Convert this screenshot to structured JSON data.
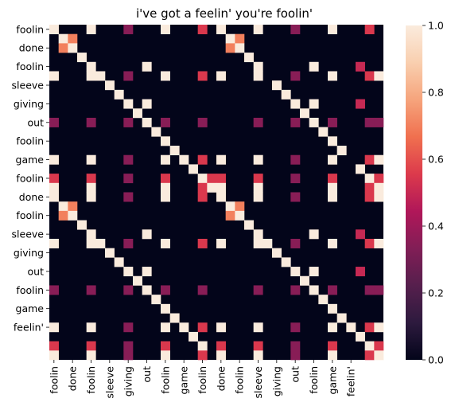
{
  "chart_data": {
    "type": "heatmap",
    "title": "i've got a feelin' you're foolin'",
    "size": 36,
    "row_tick_labels": [
      "foolin",
      "done",
      "foolin",
      "sleeve",
      "giving",
      "out",
      "foolin",
      "game",
      "foolin",
      "done",
      "foolin",
      "sleeve",
      "giving",
      "out",
      "foolin",
      "game",
      "feelin'"
    ],
    "col_tick_labels": [
      "foolin",
      "done",
      "foolin",
      "sleeve",
      "giving",
      "out",
      "foolin",
      "game",
      "foolin",
      "done",
      "foolin",
      "sleeve",
      "giving",
      "out",
      "foolin",
      "game",
      "feelin'"
    ],
    "tick_every": 2,
    "colorbar": {
      "min": 0.0,
      "max": 1.0,
      "ticks": [
        "0.0",
        "0.2",
        "0.4",
        "0.6",
        "0.8",
        "1.0"
      ]
    },
    "colormap": [
      "#03051a",
      "#2d1a3e",
      "#561f4d",
      "#811e56",
      "#b01759",
      "#dc3a4c",
      "#f0704f",
      "#f6a47c",
      "#f9cfaf",
      "#faebdd"
    ],
    "base_value": 0.0,
    "cells": [
      {
        "r": 0,
        "c": 0,
        "v": 1.0
      },
      {
        "r": 0,
        "c": 4,
        "v": 1.0
      },
      {
        "r": 0,
        "c": 8,
        "v": 0.35
      },
      {
        "r": 0,
        "c": 12,
        "v": 1.0
      },
      {
        "r": 0,
        "c": 16,
        "v": 0.55
      },
      {
        "r": 0,
        "c": 18,
        "v": 1.0
      },
      {
        "r": 0,
        "c": 22,
        "v": 1.0
      },
      {
        "r": 0,
        "c": 26,
        "v": 0.35
      },
      {
        "r": 0,
        "c": 30,
        "v": 1.0
      },
      {
        "r": 0,
        "c": 34,
        "v": 0.55
      },
      {
        "r": 1,
        "c": 1,
        "v": 1.0
      },
      {
        "r": 1,
        "c": 2,
        "v": 0.7
      },
      {
        "r": 1,
        "c": 19,
        "v": 1.0
      },
      {
        "r": 1,
        "c": 20,
        "v": 0.7
      },
      {
        "r": 2,
        "c": 1,
        "v": 0.7
      },
      {
        "r": 2,
        "c": 2,
        "v": 1.0
      },
      {
        "r": 2,
        "c": 19,
        "v": 0.7
      },
      {
        "r": 2,
        "c": 20,
        "v": 1.0
      },
      {
        "r": 3,
        "c": 3,
        "v": 1.0
      },
      {
        "r": 3,
        "c": 21,
        "v": 1.0
      },
      {
        "r": 4,
        "c": 4,
        "v": 1.0
      },
      {
        "r": 4,
        "c": 10,
        "v": 1.0
      },
      {
        "r": 4,
        "c": 22,
        "v": 1.0
      },
      {
        "r": 4,
        "c": 28,
        "v": 1.0
      },
      {
        "r": 4,
        "c": 33,
        "v": 0.5
      },
      {
        "r": 5,
        "c": 0,
        "v": 1.0
      },
      {
        "r": 5,
        "c": 4,
        "v": 1.0
      },
      {
        "r": 5,
        "c": 5,
        "v": 1.0
      },
      {
        "r": 5,
        "c": 8,
        "v": 0.35
      },
      {
        "r": 5,
        "c": 12,
        "v": 1.0
      },
      {
        "r": 5,
        "c": 16,
        "v": 0.55
      },
      {
        "r": 5,
        "c": 18,
        "v": 1.0
      },
      {
        "r": 5,
        "c": 22,
        "v": 1.0
      },
      {
        "r": 5,
        "c": 26,
        "v": 0.35
      },
      {
        "r": 5,
        "c": 30,
        "v": 1.0
      },
      {
        "r": 5,
        "c": 34,
        "v": 0.55
      },
      {
        "r": 5,
        "c": 35,
        "v": 1.0
      },
      {
        "r": 6,
        "c": 6,
        "v": 1.0
      },
      {
        "r": 6,
        "c": 24,
        "v": 1.0
      },
      {
        "r": 7,
        "c": 7,
        "v": 1.0
      },
      {
        "r": 7,
        "c": 25,
        "v": 1.0
      },
      {
        "r": 8,
        "c": 8,
        "v": 1.0
      },
      {
        "r": 8,
        "c": 10,
        "v": 1.0
      },
      {
        "r": 8,
        "c": 26,
        "v": 1.0
      },
      {
        "r": 8,
        "c": 28,
        "v": 1.0
      },
      {
        "r": 8,
        "c": 33,
        "v": 0.5
      },
      {
        "r": 9,
        "c": 9,
        "v": 1.0
      },
      {
        "r": 9,
        "c": 27,
        "v": 1.0
      },
      {
        "r": 10,
        "c": 0,
        "v": 0.35
      },
      {
        "r": 10,
        "c": 4,
        "v": 0.35
      },
      {
        "r": 10,
        "c": 8,
        "v": 0.35
      },
      {
        "r": 10,
        "c": 10,
        "v": 1.0
      },
      {
        "r": 10,
        "c": 12,
        "v": 0.35
      },
      {
        "r": 10,
        "c": 16,
        "v": 0.35
      },
      {
        "r": 10,
        "c": 22,
        "v": 0.35
      },
      {
        "r": 10,
        "c": 26,
        "v": 0.35
      },
      {
        "r": 10,
        "c": 28,
        "v": 1.0
      },
      {
        "r": 10,
        "c": 30,
        "v": 0.35
      },
      {
        "r": 10,
        "c": 34,
        "v": 0.35
      },
      {
        "r": 10,
        "c": 35,
        "v": 0.35
      },
      {
        "r": 11,
        "c": 11,
        "v": 1.0
      },
      {
        "r": 11,
        "c": 29,
        "v": 1.0
      },
      {
        "r": 12,
        "c": 12,
        "v": 1.0
      },
      {
        "r": 12,
        "c": 30,
        "v": 1.0
      },
      {
        "r": 13,
        "c": 13,
        "v": 1.0
      },
      {
        "r": 13,
        "c": 31,
        "v": 1.0
      },
      {
        "r": 14,
        "c": 0,
        "v": 1.0
      },
      {
        "r": 14,
        "c": 4,
        "v": 1.0
      },
      {
        "r": 14,
        "c": 8,
        "v": 0.35
      },
      {
        "r": 14,
        "c": 12,
        "v": 1.0
      },
      {
        "r": 14,
        "c": 14,
        "v": 1.0
      },
      {
        "r": 14,
        "c": 16,
        "v": 0.55
      },
      {
        "r": 14,
        "c": 18,
        "v": 1.0
      },
      {
        "r": 14,
        "c": 22,
        "v": 1.0
      },
      {
        "r": 14,
        "c": 26,
        "v": 0.35
      },
      {
        "r": 14,
        "c": 30,
        "v": 1.0
      },
      {
        "r": 14,
        "c": 34,
        "v": 0.55
      },
      {
        "r": 14,
        "c": 35,
        "v": 1.0
      },
      {
        "r": 15,
        "c": 15,
        "v": 1.0
      },
      {
        "r": 15,
        "c": 33,
        "v": 1.0
      },
      {
        "r": 16,
        "c": 0,
        "v": 0.55
      },
      {
        "r": 16,
        "c": 4,
        "v": 0.55
      },
      {
        "r": 16,
        "c": 8,
        "v": 0.35
      },
      {
        "r": 16,
        "c": 12,
        "v": 0.55
      },
      {
        "r": 16,
        "c": 16,
        "v": 1.0
      },
      {
        "r": 16,
        "c": 17,
        "v": 0.55
      },
      {
        "r": 16,
        "c": 18,
        "v": 0.55
      },
      {
        "r": 16,
        "c": 22,
        "v": 0.55
      },
      {
        "r": 16,
        "c": 26,
        "v": 0.35
      },
      {
        "r": 16,
        "c": 30,
        "v": 0.55
      },
      {
        "r": 16,
        "c": 34,
        "v": 1.0
      },
      {
        "r": 16,
        "c": 35,
        "v": 0.55
      },
      {
        "r": 17,
        "c": 0,
        "v": 1.0
      },
      {
        "r": 17,
        "c": 4,
        "v": 1.0
      },
      {
        "r": 17,
        "c": 12,
        "v": 1.0
      },
      {
        "r": 17,
        "c": 16,
        "v": 0.55
      },
      {
        "r": 17,
        "c": 17,
        "v": 1.0
      },
      {
        "r": 17,
        "c": 18,
        "v": 1.0
      },
      {
        "r": 17,
        "c": 22,
        "v": 1.0
      },
      {
        "r": 17,
        "c": 30,
        "v": 1.0
      },
      {
        "r": 17,
        "c": 34,
        "v": 0.55
      },
      {
        "r": 17,
        "c": 35,
        "v": 1.0
      },
      {
        "r": 18,
        "c": 0,
        "v": 1.0
      },
      {
        "r": 18,
        "c": 4,
        "v": 1.0
      },
      {
        "r": 18,
        "c": 8,
        "v": 0.35
      },
      {
        "r": 18,
        "c": 12,
        "v": 1.0
      },
      {
        "r": 18,
        "c": 16,
        "v": 0.55
      },
      {
        "r": 18,
        "c": 18,
        "v": 1.0
      },
      {
        "r": 18,
        "c": 22,
        "v": 1.0
      },
      {
        "r": 18,
        "c": 26,
        "v": 0.35
      },
      {
        "r": 18,
        "c": 30,
        "v": 1.0
      },
      {
        "r": 18,
        "c": 34,
        "v": 0.55
      },
      {
        "r": 18,
        "c": 35,
        "v": 1.0
      },
      {
        "r": 19,
        "c": 1,
        "v": 1.0
      },
      {
        "r": 19,
        "c": 2,
        "v": 0.7
      },
      {
        "r": 19,
        "c": 19,
        "v": 1.0
      },
      {
        "r": 19,
        "c": 20,
        "v": 0.7
      },
      {
        "r": 20,
        "c": 1,
        "v": 0.7
      },
      {
        "r": 20,
        "c": 2,
        "v": 1.0
      },
      {
        "r": 20,
        "c": 19,
        "v": 0.7
      },
      {
        "r": 20,
        "c": 20,
        "v": 1.0
      },
      {
        "r": 21,
        "c": 3,
        "v": 1.0
      },
      {
        "r": 21,
        "c": 21,
        "v": 1.0
      },
      {
        "r": 22,
        "c": 4,
        "v": 1.0
      },
      {
        "r": 22,
        "c": 10,
        "v": 1.0
      },
      {
        "r": 22,
        "c": 22,
        "v": 1.0
      },
      {
        "r": 22,
        "c": 28,
        "v": 1.0
      },
      {
        "r": 22,
        "c": 33,
        "v": 0.5
      },
      {
        "r": 23,
        "c": 0,
        "v": 1.0
      },
      {
        "r": 23,
        "c": 4,
        "v": 1.0
      },
      {
        "r": 23,
        "c": 5,
        "v": 1.0
      },
      {
        "r": 23,
        "c": 8,
        "v": 0.35
      },
      {
        "r": 23,
        "c": 12,
        "v": 1.0
      },
      {
        "r": 23,
        "c": 16,
        "v": 0.55
      },
      {
        "r": 23,
        "c": 18,
        "v": 1.0
      },
      {
        "r": 23,
        "c": 22,
        "v": 1.0
      },
      {
        "r": 23,
        "c": 23,
        "v": 1.0
      },
      {
        "r": 23,
        "c": 26,
        "v": 0.35
      },
      {
        "r": 23,
        "c": 30,
        "v": 1.0
      },
      {
        "r": 23,
        "c": 34,
        "v": 0.55
      },
      {
        "r": 23,
        "c": 35,
        "v": 1.0
      },
      {
        "r": 24,
        "c": 6,
        "v": 1.0
      },
      {
        "r": 24,
        "c": 24,
        "v": 1.0
      },
      {
        "r": 25,
        "c": 7,
        "v": 1.0
      },
      {
        "r": 25,
        "c": 25,
        "v": 1.0
      },
      {
        "r": 26,
        "c": 8,
        "v": 1.0
      },
      {
        "r": 26,
        "c": 10,
        "v": 1.0
      },
      {
        "r": 26,
        "c": 26,
        "v": 1.0
      },
      {
        "r": 26,
        "c": 28,
        "v": 1.0
      },
      {
        "r": 26,
        "c": 33,
        "v": 0.5
      },
      {
        "r": 27,
        "c": 9,
        "v": 1.0
      },
      {
        "r": 27,
        "c": 27,
        "v": 1.0
      },
      {
        "r": 28,
        "c": 0,
        "v": 0.35
      },
      {
        "r": 28,
        "c": 4,
        "v": 0.35
      },
      {
        "r": 28,
        "c": 8,
        "v": 0.35
      },
      {
        "r": 28,
        "c": 10,
        "v": 1.0
      },
      {
        "r": 28,
        "c": 12,
        "v": 0.35
      },
      {
        "r": 28,
        "c": 16,
        "v": 0.35
      },
      {
        "r": 28,
        "c": 22,
        "v": 0.35
      },
      {
        "r": 28,
        "c": 26,
        "v": 0.35
      },
      {
        "r": 28,
        "c": 28,
        "v": 1.0
      },
      {
        "r": 28,
        "c": 30,
        "v": 0.35
      },
      {
        "r": 28,
        "c": 34,
        "v": 0.35
      },
      {
        "r": 28,
        "c": 35,
        "v": 0.35
      },
      {
        "r": 29,
        "c": 11,
        "v": 1.0
      },
      {
        "r": 29,
        "c": 29,
        "v": 1.0
      },
      {
        "r": 30,
        "c": 12,
        "v": 1.0
      },
      {
        "r": 30,
        "c": 30,
        "v": 1.0
      },
      {
        "r": 31,
        "c": 13,
        "v": 1.0
      },
      {
        "r": 31,
        "c": 31,
        "v": 1.0
      },
      {
        "r": 32,
        "c": 0,
        "v": 1.0
      },
      {
        "r": 32,
        "c": 4,
        "v": 1.0
      },
      {
        "r": 32,
        "c": 8,
        "v": 0.35
      },
      {
        "r": 32,
        "c": 12,
        "v": 1.0
      },
      {
        "r": 32,
        "c": 14,
        "v": 1.0
      },
      {
        "r": 32,
        "c": 16,
        "v": 0.55
      },
      {
        "r": 32,
        "c": 18,
        "v": 1.0
      },
      {
        "r": 32,
        "c": 22,
        "v": 1.0
      },
      {
        "r": 32,
        "c": 26,
        "v": 0.35
      },
      {
        "r": 32,
        "c": 30,
        "v": 1.0
      },
      {
        "r": 32,
        "c": 32,
        "v": 1.0
      },
      {
        "r": 32,
        "c": 34,
        "v": 0.55
      },
      {
        "r": 32,
        "c": 35,
        "v": 1.0
      },
      {
        "r": 33,
        "c": 15,
        "v": 1.0
      },
      {
        "r": 33,
        "c": 33,
        "v": 1.0
      },
      {
        "r": 34,
        "c": 0,
        "v": 0.55
      },
      {
        "r": 34,
        "c": 4,
        "v": 0.55
      },
      {
        "r": 34,
        "c": 8,
        "v": 0.35
      },
      {
        "r": 34,
        "c": 12,
        "v": 0.55
      },
      {
        "r": 34,
        "c": 16,
        "v": 1.0
      },
      {
        "r": 34,
        "c": 18,
        "v": 0.55
      },
      {
        "r": 34,
        "c": 22,
        "v": 0.55
      },
      {
        "r": 34,
        "c": 26,
        "v": 0.35
      },
      {
        "r": 34,
        "c": 30,
        "v": 0.55
      },
      {
        "r": 34,
        "c": 34,
        "v": 1.0
      },
      {
        "r": 34,
        "c": 35,
        "v": 0.55
      },
      {
        "r": 35,
        "c": 0,
        "v": 1.0
      },
      {
        "r": 35,
        "c": 4,
        "v": 1.0
      },
      {
        "r": 35,
        "c": 8,
        "v": 0.35
      },
      {
        "r": 35,
        "c": 12,
        "v": 1.0
      },
      {
        "r": 35,
        "c": 16,
        "v": 0.55
      },
      {
        "r": 35,
        "c": 18,
        "v": 1.0
      },
      {
        "r": 35,
        "c": 22,
        "v": 1.0
      },
      {
        "r": 35,
        "c": 26,
        "v": 0.35
      },
      {
        "r": 35,
        "c": 30,
        "v": 1.0
      },
      {
        "r": 35,
        "c": 34,
        "v": 0.55
      },
      {
        "r": 35,
        "c": 35,
        "v": 1.0
      }
    ]
  }
}
